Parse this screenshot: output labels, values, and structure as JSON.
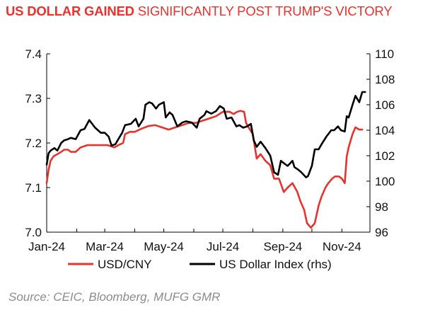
{
  "title": {
    "bold_part": "US DOLLAR GAINED",
    "rest": " SIGNIFICANTLY POST TRUMP'S VICTORY"
  },
  "source": "Source: CEIC, Bloomberg, MUFG GMR",
  "colors": {
    "title": "#e8322d",
    "usdcny": "#e8322d",
    "dxy": "#000000",
    "axis": "#000000",
    "source": "#8c8c8c"
  },
  "chart_data": {
    "type": "line",
    "title": "US DOLLAR GAINED SIGNIFICANTLY POST TRUMP'S VICTORY",
    "x_ticks": [
      "Jan-24",
      "Mar-24",
      "May-24",
      "Jul-24",
      "Sep-24",
      "Nov-24"
    ],
    "xlim": [
      "2024-01-01",
      "2024-11-30"
    ],
    "y_left": {
      "ticks": [
        "7.0",
        "7.1",
        "7.2",
        "7.3",
        "7.4"
      ],
      "lim": [
        7.0,
        7.4
      ]
    },
    "y_right": {
      "ticks": [
        "96",
        "98",
        "100",
        "102",
        "104",
        "106",
        "108",
        "110"
      ],
      "lim": [
        96,
        110
      ],
      "label": "rhs"
    },
    "grid": false,
    "legend_position": "bottom",
    "series": [
      {
        "name": "USD/CNY",
        "axis": "left",
        "color": "#e8322d",
        "points": [
          [
            "2024-01-01",
            7.11
          ],
          [
            "2024-01-03",
            7.14
          ],
          [
            "2024-01-05",
            7.16
          ],
          [
            "2024-01-08",
            7.17
          ],
          [
            "2024-01-12",
            7.175
          ],
          [
            "2024-01-16",
            7.18
          ],
          [
            "2024-01-19",
            7.185
          ],
          [
            "2024-01-23",
            7.185
          ],
          [
            "2024-01-26",
            7.18
          ],
          [
            "2024-01-31",
            7.18
          ],
          [
            "2024-02-05",
            7.19
          ],
          [
            "2024-02-12",
            7.195
          ],
          [
            "2024-02-19",
            7.195
          ],
          [
            "2024-02-26",
            7.195
          ],
          [
            "2024-03-04",
            7.195
          ],
          [
            "2024-03-11",
            7.19
          ],
          [
            "2024-03-15",
            7.195
          ],
          [
            "2024-03-20",
            7.2
          ],
          [
            "2024-03-22",
            7.22
          ],
          [
            "2024-03-27",
            7.225
          ],
          [
            "2024-04-01",
            7.225
          ],
          [
            "2024-04-08",
            7.232
          ],
          [
            "2024-04-15",
            7.238
          ],
          [
            "2024-04-22",
            7.24
          ],
          [
            "2024-04-29",
            7.235
          ],
          [
            "2024-05-06",
            7.23
          ],
          [
            "2024-05-13",
            7.235
          ],
          [
            "2024-05-20",
            7.24
          ],
          [
            "2024-05-27",
            7.245
          ],
          [
            "2024-06-03",
            7.245
          ],
          [
            "2024-06-10",
            7.25
          ],
          [
            "2024-06-17",
            7.255
          ],
          [
            "2024-06-24",
            7.26
          ],
          [
            "2024-07-01",
            7.27
          ],
          [
            "2024-07-08",
            7.27
          ],
          [
            "2024-07-12",
            7.265
          ],
          [
            "2024-07-16",
            7.27
          ],
          [
            "2024-07-19",
            7.272
          ],
          [
            "2024-07-23",
            7.27
          ],
          [
            "2024-07-25",
            7.245
          ],
          [
            "2024-07-29",
            7.23
          ],
          [
            "2024-08-01",
            7.22
          ],
          [
            "2024-08-05",
            7.165
          ],
          [
            "2024-08-09",
            7.175
          ],
          [
            "2024-08-14",
            7.16
          ],
          [
            "2024-08-19",
            7.15
          ],
          [
            "2024-08-23",
            7.12
          ],
          [
            "2024-08-28",
            7.12
          ],
          [
            "2024-09-02",
            7.09
          ],
          [
            "2024-09-06",
            7.1
          ],
          [
            "2024-09-11",
            7.11
          ],
          [
            "2024-09-16",
            7.09
          ],
          [
            "2024-09-19",
            7.07
          ],
          [
            "2024-09-23",
            7.05
          ],
          [
            "2024-09-26",
            7.02
          ],
          [
            "2024-09-30",
            7.01
          ],
          [
            "2024-10-04",
            7.02
          ],
          [
            "2024-10-08",
            7.06
          ],
          [
            "2024-10-11",
            7.08
          ],
          [
            "2024-10-15",
            7.1
          ],
          [
            "2024-10-18",
            7.11
          ],
          [
            "2024-10-22",
            7.12
          ],
          [
            "2024-10-25",
            7.125
          ],
          [
            "2024-10-29",
            7.125
          ],
          [
            "2024-11-01",
            7.12
          ],
          [
            "2024-11-04",
            7.11
          ],
          [
            "2024-11-06",
            7.17
          ],
          [
            "2024-11-08",
            7.19
          ],
          [
            "2024-11-12",
            7.22
          ],
          [
            "2024-11-15",
            7.235
          ],
          [
            "2024-11-19",
            7.23
          ],
          [
            "2024-11-22",
            7.23
          ]
        ]
      },
      {
        "name": "US Dollar Index (rhs)",
        "axis": "right",
        "color": "#000000",
        "points": [
          [
            "2024-01-01",
            101.3
          ],
          [
            "2024-01-03",
            102.2
          ],
          [
            "2024-01-05",
            102.4
          ],
          [
            "2024-01-09",
            102.6
          ],
          [
            "2024-01-12",
            102.4
          ],
          [
            "2024-01-16",
            103.0
          ],
          [
            "2024-01-19",
            103.2
          ],
          [
            "2024-01-23",
            103.3
          ],
          [
            "2024-01-26",
            103.4
          ],
          [
            "2024-01-31",
            103.3
          ],
          [
            "2024-02-05",
            104.0
          ],
          [
            "2024-02-09",
            104.1
          ],
          [
            "2024-02-14",
            104.8
          ],
          [
            "2024-02-20",
            104.2
          ],
          [
            "2024-02-26",
            103.8
          ],
          [
            "2024-03-01",
            103.8
          ],
          [
            "2024-03-05",
            103.5
          ],
          [
            "2024-03-08",
            102.8
          ],
          [
            "2024-03-12",
            102.9
          ],
          [
            "2024-03-15",
            103.3
          ],
          [
            "2024-03-19",
            103.8
          ],
          [
            "2024-03-22",
            104.4
          ],
          [
            "2024-03-28",
            104.5
          ],
          [
            "2024-04-02",
            104.9
          ],
          [
            "2024-04-05",
            104.3
          ],
          [
            "2024-04-10",
            104.9
          ],
          [
            "2024-04-12",
            106.0
          ],
          [
            "2024-04-16",
            106.2
          ],
          [
            "2024-04-19",
            106.1
          ],
          [
            "2024-04-23",
            105.7
          ],
          [
            "2024-04-26",
            106.0
          ],
          [
            "2024-05-01",
            106.2
          ],
          [
            "2024-05-03",
            105.0
          ],
          [
            "2024-05-07",
            105.4
          ],
          [
            "2024-05-10",
            105.2
          ],
          [
            "2024-05-15",
            104.3
          ],
          [
            "2024-05-20",
            104.6
          ],
          [
            "2024-05-24",
            104.7
          ],
          [
            "2024-05-30",
            104.6
          ],
          [
            "2024-06-04",
            104.2
          ],
          [
            "2024-06-07",
            104.9
          ],
          [
            "2024-06-12",
            105.2
          ],
          [
            "2024-06-14",
            105.5
          ],
          [
            "2024-06-19",
            105.3
          ],
          [
            "2024-06-24",
            105.5
          ],
          [
            "2024-06-28",
            105.9
          ],
          [
            "2024-07-02",
            105.7
          ],
          [
            "2024-07-05",
            104.9
          ],
          [
            "2024-07-10",
            105.0
          ],
          [
            "2024-07-15",
            104.3
          ],
          [
            "2024-07-18",
            104.4
          ],
          [
            "2024-07-22",
            104.2
          ],
          [
            "2024-07-26",
            104.3
          ],
          [
            "2024-07-30",
            104.5
          ],
          [
            "2024-08-02",
            103.2
          ],
          [
            "2024-08-05",
            102.7
          ],
          [
            "2024-08-09",
            103.1
          ],
          [
            "2024-08-14",
            102.6
          ],
          [
            "2024-08-19",
            102.0
          ],
          [
            "2024-08-23",
            100.7
          ],
          [
            "2024-08-27",
            100.5
          ],
          [
            "2024-08-30",
            101.6
          ],
          [
            "2024-09-04",
            101.3
          ],
          [
            "2024-09-06",
            101.2
          ],
          [
            "2024-09-11",
            101.6
          ],
          [
            "2024-09-13",
            101.1
          ],
          [
            "2024-09-17",
            100.9
          ],
          [
            "2024-09-20",
            100.7
          ],
          [
            "2024-09-25",
            100.3
          ],
          [
            "2024-09-27",
            100.4
          ],
          [
            "2024-10-01",
            101.2
          ],
          [
            "2024-10-04",
            102.5
          ],
          [
            "2024-10-08",
            102.5
          ],
          [
            "2024-10-11",
            102.9
          ],
          [
            "2024-10-16",
            103.5
          ],
          [
            "2024-10-21",
            104.0
          ],
          [
            "2024-10-24",
            104.0
          ],
          [
            "2024-10-28",
            104.3
          ],
          [
            "2024-10-31",
            104.0
          ],
          [
            "2024-11-04",
            103.9
          ],
          [
            "2024-11-06",
            105.1
          ],
          [
            "2024-11-08",
            105.0
          ],
          [
            "2024-11-12",
            106.0
          ],
          [
            "2024-11-15",
            106.7
          ],
          [
            "2024-11-19",
            106.2
          ],
          [
            "2024-11-22",
            107.0
          ],
          [
            "2024-11-25",
            107.0
          ]
        ]
      }
    ]
  }
}
